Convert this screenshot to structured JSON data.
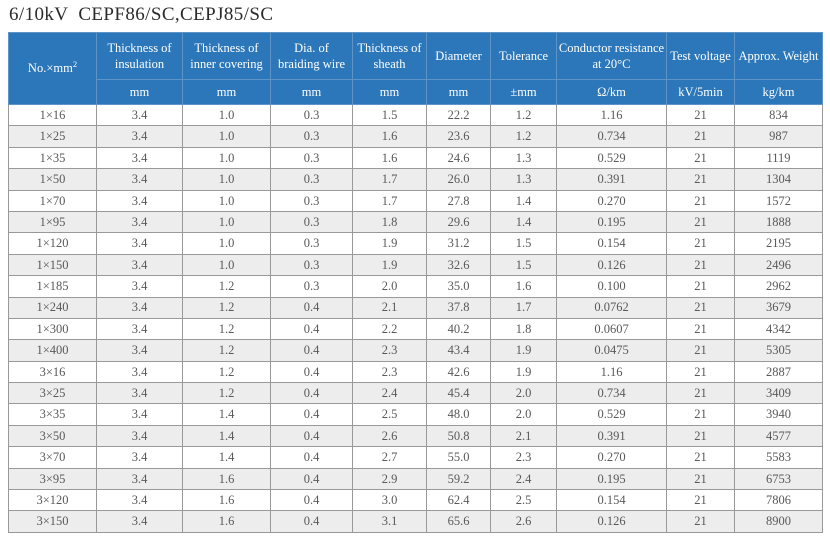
{
  "page": {
    "title_text": "6/10kV  CEPF86/SC,CEPJ85/SC"
  },
  "colors": {
    "header_bg": "#2b77b9",
    "header_text": "#ffffff",
    "header_grid": "#5f94c9",
    "row_stripe": "#ededee",
    "data_grid": "#999999",
    "body_text": "#595959"
  },
  "table": {
    "corner": {
      "label": "No.×mm",
      "sup": "2"
    },
    "columns": [
      {
        "label": "Thickness of insulation",
        "unit": "mm"
      },
      {
        "label": "Thickness of inner covering",
        "unit": "mm"
      },
      {
        "label": "Dia. of braiding wire",
        "unit": "mm"
      },
      {
        "label": "Thickness of sheath",
        "unit": "mm"
      },
      {
        "label": "Diameter",
        "unit": "mm"
      },
      {
        "label": "Tolerance",
        "unit": "±mm"
      },
      {
        "label": "Conductor resistance at 20°C",
        "unit": "Ω/km"
      },
      {
        "label": "Test voltage",
        "unit": "kV/5min"
      },
      {
        "label": "Approx. Weight",
        "unit": "kg/km"
      }
    ],
    "rows": [
      [
        "1×16",
        "3.4",
        "1.0",
        "0.3",
        "1.5",
        "22.2",
        "1.2",
        "1.16",
        "21",
        "834"
      ],
      [
        "1×25",
        "3.4",
        "1.0",
        "0.3",
        "1.6",
        "23.6",
        "1.2",
        "0.734",
        "21",
        "987"
      ],
      [
        "1×35",
        "3.4",
        "1.0",
        "0.3",
        "1.6",
        "24.6",
        "1.3",
        "0.529",
        "21",
        "1119"
      ],
      [
        "1×50",
        "3.4",
        "1.0",
        "0.3",
        "1.7",
        "26.0",
        "1.3",
        "0.391",
        "21",
        "1304"
      ],
      [
        "1×70",
        "3.4",
        "1.0",
        "0.3",
        "1.7",
        "27.8",
        "1.4",
        "0.270",
        "21",
        "1572"
      ],
      [
        "1×95",
        "3.4",
        "1.0",
        "0.3",
        "1.8",
        "29.6",
        "1.4",
        "0.195",
        "21",
        "1888"
      ],
      [
        "1×120",
        "3.4",
        "1.0",
        "0.3",
        "1.9",
        "31.2",
        "1.5",
        "0.154",
        "21",
        "2195"
      ],
      [
        "1×150",
        "3.4",
        "1.0",
        "0.3",
        "1.9",
        "32.6",
        "1.5",
        "0.126",
        "21",
        "2496"
      ],
      [
        "1×185",
        "3.4",
        "1.2",
        "0.3",
        "2.0",
        "35.0",
        "1.6",
        "0.100",
        "21",
        "2962"
      ],
      [
        "1×240",
        "3.4",
        "1.2",
        "0.4",
        "2.1",
        "37.8",
        "1.7",
        "0.0762",
        "21",
        "3679"
      ],
      [
        "1×300",
        "3.4",
        "1.2",
        "0.4",
        "2.2",
        "40.2",
        "1.8",
        "0.0607",
        "21",
        "4342"
      ],
      [
        "1×400",
        "3.4",
        "1.2",
        "0.4",
        "2.3",
        "43.4",
        "1.9",
        "0.0475",
        "21",
        "5305"
      ],
      [
        "3×16",
        "3.4",
        "1.2",
        "0.4",
        "2.3",
        "42.6",
        "1.9",
        "1.16",
        "21",
        "2887"
      ],
      [
        "3×25",
        "3.4",
        "1.2",
        "0.4",
        "2.4",
        "45.4",
        "2.0",
        "0.734",
        "21",
        "3409"
      ],
      [
        "3×35",
        "3.4",
        "1.4",
        "0.4",
        "2.5",
        "48.0",
        "2.0",
        "0.529",
        "21",
        "3940"
      ],
      [
        "3×50",
        "3.4",
        "1.4",
        "0.4",
        "2.6",
        "50.8",
        "2.1",
        "0.391",
        "21",
        "4577"
      ],
      [
        "3×70",
        "3.4",
        "1.4",
        "0.4",
        "2.7",
        "55.0",
        "2.3",
        "0.270",
        "21",
        "5583"
      ],
      [
        "3×95",
        "3.4",
        "1.6",
        "0.4",
        "2.9",
        "59.2",
        "2.4",
        "0.195",
        "21",
        "6753"
      ],
      [
        "3×120",
        "3.4",
        "1.6",
        "0.4",
        "3.0",
        "62.4",
        "2.5",
        "0.154",
        "21",
        "7806"
      ],
      [
        "3×150",
        "3.4",
        "1.6",
        "0.4",
        "3.1",
        "65.6",
        "2.6",
        "0.126",
        "21",
        "8900"
      ]
    ]
  }
}
